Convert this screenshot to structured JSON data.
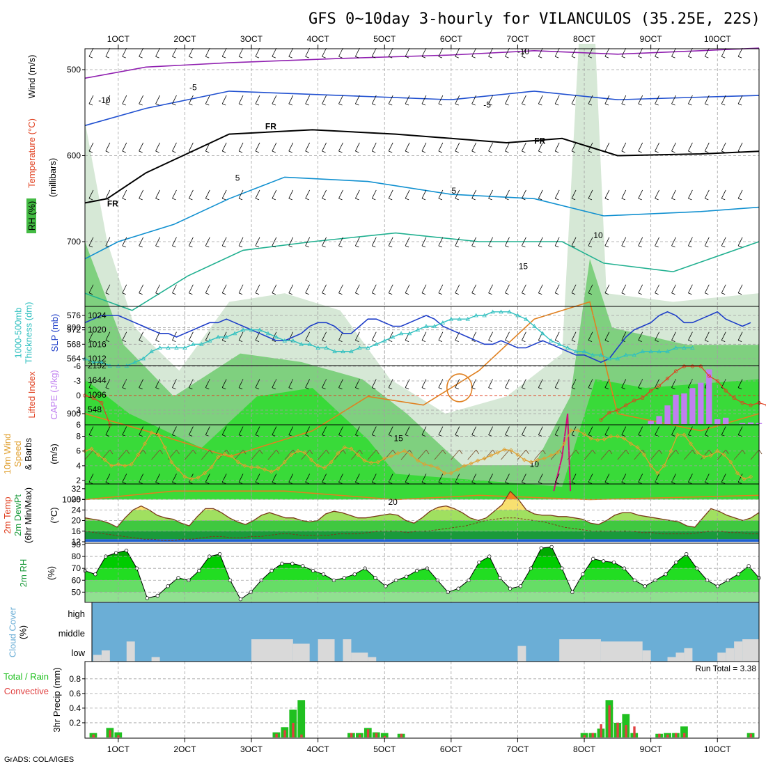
{
  "title": "GFS 0~10day 3-hourly for VILANCULOS (35.25E, 22S)",
  "footer": "GrADS: COLA/IGES",
  "x_axis": {
    "ticks": [
      "1OCT",
      "2OCT",
      "3OCT",
      "4OCT",
      "5OCT",
      "6OCT",
      "7OCT",
      "8OCT",
      "9OCT",
      "10OCT"
    ],
    "tick_hours": [
      0,
      24,
      48,
      72,
      96,
      120,
      144,
      168,
      192,
      216
    ],
    "range_hours": [
      -12,
      231
    ]
  },
  "colors": {
    "green_bright": "#00ee00",
    "green_mid": "#44cc44",
    "green_light": "#90e090",
    "sky": "#6baed6",
    "cloud_gray": "#d9d9d9",
    "temp_red": "#e04020",
    "cape_purple": "#c080f0",
    "speed_orange": "#e0a030",
    "slp_blue": "#1c3cc8",
    "thick_cyan": "#30c0c0"
  },
  "chart_data": [
    {
      "type": "heatmap",
      "panel": "cross-section",
      "ylabel": "(millibars)",
      "side_labels": {
        "rh": "RH (%)",
        "temp": "Temperature (°C)",
        "wind": "Wind (m/s)"
      },
      "y_ticks": [
        500,
        600,
        700,
        800,
        900,
        1000
      ],
      "ylim": [
        1000,
        450
      ],
      "isotherm_labels": [
        {
          "text": "-10",
          "x_hour": -5,
          "p": 535
        },
        {
          "text": "-10",
          "x_hour": 146,
          "p": 478
        },
        {
          "text": "-5",
          "x_hour": 27,
          "p": 520
        },
        {
          "text": "-5",
          "x_hour": 133,
          "p": 540
        },
        {
          "text": "FR",
          "x_hour": 55,
          "p": 565
        },
        {
          "text": "FR",
          "x_hour": -2,
          "p": 655
        },
        {
          "text": "FR",
          "x_hour": 152,
          "p": 582
        },
        {
          "text": "5",
          "x_hour": 43,
          "p": 625
        },
        {
          "text": "5",
          "x_hour": 121,
          "p": 640
        },
        {
          "text": "10",
          "x_hour": 173,
          "p": 692
        },
        {
          "text": "15",
          "x_hour": 146,
          "p": 728
        },
        {
          "text": "15",
          "x_hour": 101,
          "p": 928
        },
        {
          "text": "20",
          "x_hour": 99,
          "p": 1002
        },
        {
          "text": "10",
          "x_hour": 150,
          "p": 958
        }
      ]
    },
    {
      "type": "line",
      "panel": "SLP / thickness",
      "ylabel_left": "1000-500mb Thickness (dm)",
      "ylabel_right": "SLP (mb)",
      "y_ticks_left": [
        564,
        568,
        572,
        576
      ],
      "y_ticks_right": [
        1012,
        1016,
        1020,
        1024
      ],
      "series": [
        {
          "name": "SLP (mb)",
          "axis": "right",
          "values": [
            1022,
            1023,
            1024,
            1024,
            1024,
            1023,
            1022,
            1021,
            1020,
            1019,
            1019,
            1018,
            1019,
            1020,
            1021,
            1022,
            1022,
            1023,
            1022,
            1021,
            1020,
            1019,
            1018,
            1017,
            1017,
            1018,
            1019,
            1021,
            1022,
            1022,
            1021,
            1019,
            1019,
            1021,
            1023,
            1023,
            1022,
            1021,
            1021,
            1022,
            1023,
            1024,
            1023,
            1021,
            1020,
            1019,
            1018,
            1017,
            1016,
            1016,
            1017,
            1016,
            1015,
            1015,
            1016,
            1017,
            1016,
            1015,
            1014,
            1013,
            1013,
            1012,
            1011,
            1012,
            1015,
            1018,
            1020,
            1021,
            1022,
            1024,
            1025,
            1024,
            1022,
            1022,
            1023,
            1024,
            1025,
            1023,
            1022,
            1021,
            1022
          ]
        },
        {
          "name": "1000-500mb Thickness (dm)",
          "axis": "left",
          "values": [
            564,
            563,
            563,
            562,
            562,
            562,
            563,
            564,
            566,
            567,
            567,
            567,
            567,
            568,
            568,
            569,
            570,
            570,
            571,
            572,
            572,
            572,
            571,
            570,
            569,
            569,
            568,
            568,
            567,
            567,
            566,
            566,
            566,
            567,
            567,
            568,
            569,
            570,
            571,
            571,
            572,
            573,
            573,
            574,
            575,
            575,
            575,
            576,
            576,
            577,
            577,
            577,
            576,
            575,
            573,
            571,
            569,
            568,
            567,
            566,
            566,
            565,
            565,
            564,
            564,
            565,
            565,
            566,
            566,
            566,
            566,
            567,
            567,
            567
          ]
        }
      ]
    },
    {
      "type": "bar",
      "panel": "CAPE / Lifted Index",
      "ylabel_left": "Lifted Index",
      "ylabel_right": "CAPE (J/kg)",
      "y_ticks_left": [
        "-6",
        "-3",
        "0",
        "3",
        "6"
      ],
      "y_ticks_right": [
        548,
        1096,
        1644,
        2192
      ],
      "cape_values": [
        0,
        0,
        0,
        0,
        0,
        0,
        0,
        0,
        0,
        0,
        0,
        0,
        0,
        0,
        0,
        0,
        0,
        0,
        0,
        0,
        0,
        0,
        0,
        0,
        0,
        0,
        0,
        0,
        0,
        0,
        0,
        0,
        0,
        0,
        0,
        0,
        0,
        0,
        0,
        0,
        0,
        0,
        0,
        0,
        0,
        0,
        0,
        0,
        0,
        0,
        0,
        0,
        0,
        0,
        0,
        0,
        0,
        0,
        0,
        0,
        0,
        0,
        0,
        0,
        0,
        0,
        0,
        0,
        120,
        300,
        700,
        1100,
        1150,
        1350,
        1550,
        2050,
        180,
        240,
        0,
        40,
        60,
        40,
        0,
        0,
        0,
        0,
        0,
        0,
        0,
        0,
        0,
        0,
        0,
        0,
        0,
        0,
        0,
        0,
        0,
        0,
        0,
        0,
        0,
        0,
        0
      ],
      "lifted_index": [
        0,
        0.5,
        1.5,
        6,
        null,
        null,
        null,
        null,
        null,
        null,
        null,
        null,
        null,
        null,
        null,
        null,
        null,
        null,
        null,
        null,
        null,
        null,
        null,
        null,
        null,
        null,
        null,
        null,
        null,
        null,
        null,
        null,
        null,
        null,
        null,
        null,
        null,
        null,
        null,
        null,
        null,
        null,
        null,
        null,
        null,
        null,
        null,
        null,
        null,
        null,
        null,
        null,
        null,
        null,
        null,
        null,
        null,
        null,
        null,
        null,
        null,
        null,
        5,
        3.5,
        3,
        2,
        1,
        0.5,
        -1,
        -2,
        -3.5,
        -5,
        -6,
        -6,
        -6,
        -4,
        -3,
        -1,
        0.5,
        1.5,
        2,
        1.5,
        2,
        3,
        4.5,
        6,
        null,
        null,
        null,
        null,
        null,
        4,
        5,
        5,
        5,
        5,
        5,
        5,
        5,
        5,
        5,
        5,
        5
      ]
    },
    {
      "type": "line",
      "panel": "10m Wind",
      "ylabel": "10m Wind Speed & Barbs (m/s)",
      "y_ticks": [
        2,
        4,
        6,
        8
      ],
      "series": [
        {
          "name": "Speed",
          "values": [
            6,
            6.3,
            5.5,
            4.8,
            4,
            4.2,
            4,
            4.2,
            5.5,
            7,
            8.5,
            8.2,
            6.5,
            4.5,
            3.5,
            2.5,
            2.2,
            2.4,
            3,
            3.8,
            5.2,
            5.6,
            5.3,
            4.5,
            4,
            3.8,
            3.8,
            3.5,
            3.2,
            3.6,
            4.5,
            5.5,
            6,
            5.8,
            4.8,
            4,
            3.7,
            4.5,
            5.7,
            6.5,
            6.3,
            5.5,
            4.7,
            4.4,
            4.5,
            5,
            5.3,
            5.7,
            6,
            5.5,
            4.7,
            4.2,
            4,
            3.7,
            3,
            3,
            3.5,
            4,
            4.3,
            4.7,
            5,
            5.4,
            5.8,
            6.2,
            6.1,
            5.5,
            4.8,
            4.5,
            4.8,
            5,
            5.4,
            5.8,
            7,
            8.8,
            8.8,
            8.3,
            7.7,
            7.5,
            7.6,
            8,
            8,
            7.7,
            7,
            6.5,
            5.5,
            4,
            3,
            4,
            6,
            8.2,
            8.2,
            7,
            5.8,
            5.2,
            5.4,
            6,
            5.5,
            4.5,
            3,
            2.2,
            2.5
          ]
        }
      ]
    },
    {
      "type": "area",
      "panel": "2m Temp",
      "ylabel": "2m Temp 2m DewPt (6hr Min/Max) (°C)",
      "y_ticks": [
        12,
        16,
        20,
        24,
        28,
        32
      ],
      "series": [
        {
          "name": "2m Temp",
          "values": [
            21,
            20.5,
            20,
            19,
            17.5,
            21,
            24,
            25.5,
            24,
            22,
            21,
            20.5,
            19,
            18,
            21.5,
            24.5,
            24.5,
            23,
            21,
            19.5,
            18.5,
            20,
            22,
            23,
            22,
            21,
            21,
            20,
            19.5,
            20,
            22.5,
            23.5,
            23,
            22,
            21,
            21,
            21.5,
            22,
            22.5,
            22,
            20,
            19,
            21,
            23.5,
            25,
            25.5,
            24.5,
            23,
            21,
            20,
            21,
            23.5,
            26,
            31,
            28,
            24,
            22.5,
            22,
            22,
            21.5,
            21.5,
            21,
            20.5,
            19,
            18.5,
            20,
            22,
            23,
            23,
            22,
            21.5,
            21,
            20.5,
            20,
            19.5,
            18,
            17.5,
            21,
            24.5,
            23.5,
            22,
            21,
            20,
            21,
            23
          ]
        },
        {
          "name": "2m DewPt",
          "values": [
            16,
            15.5,
            15,
            14.5,
            14,
            13.5,
            13,
            13,
            12.5,
            12.5,
            13,
            13,
            13.5,
            14,
            14,
            13.5,
            13.5,
            14,
            14,
            14.5,
            15,
            15,
            14.5,
            14.5,
            14.5,
            14.5,
            15,
            15,
            15,
            15.5,
            16,
            16,
            16,
            15.5,
            16,
            16,
            16.5,
            17,
            17.5,
            18,
            19,
            20,
            20.5,
            21,
            21,
            20.5,
            20,
            19.5,
            18.5,
            17.5,
            17,
            16.5,
            16,
            16,
            16,
            16,
            16,
            15.5,
            15.5,
            15,
            15,
            15,
            15,
            15.5,
            16,
            16,
            15.5,
            15.5,
            15,
            15
          ]
        }
      ]
    },
    {
      "type": "area",
      "panel": "2m RH",
      "ylabel": "2m RH (%)",
      "y_ticks": [
        50,
        60,
        70,
        80,
        90
      ],
      "series": [
        {
          "name": "2m RH",
          "values": [
            68,
            65,
            80,
            83,
            85,
            70,
            45,
            47,
            55,
            62,
            60,
            68,
            80,
            82,
            60,
            44,
            50,
            60,
            68,
            74,
            74,
            72,
            68,
            65,
            60,
            62,
            65,
            70,
            62,
            55,
            60,
            63,
            68,
            70,
            60,
            50,
            53,
            60,
            75,
            80,
            62,
            53,
            55,
            70,
            87,
            88,
            70,
            50,
            65,
            78,
            76,
            75,
            70,
            60,
            55,
            60,
            65,
            75,
            82,
            70,
            60,
            55,
            60,
            65,
            72,
            62
          ]
        }
      ]
    },
    {
      "type": "area",
      "panel": "Cloud Cover",
      "ylabel": "Cloud Cover (%)",
      "levels": [
        "high",
        "middle",
        "low"
      ],
      "low_cloud_blocks": [
        {
          "start_hour": -12,
          "end_hour": -10,
          "value": 1.0
        },
        {
          "start_hour": -9,
          "end_hour": -6,
          "value": 0.3
        },
        {
          "start_hour": -6,
          "end_hour": -3,
          "value": 0.5
        },
        {
          "start_hour": 3,
          "end_hour": 6,
          "value": 0.9
        },
        {
          "start_hour": 12,
          "end_hour": 15,
          "value": 0.2
        },
        {
          "start_hour": 48,
          "end_hour": 63,
          "value": 1.0
        },
        {
          "start_hour": 63,
          "end_hour": 69,
          "value": 0.8
        },
        {
          "start_hour": 72,
          "end_hour": 78,
          "value": 1.0
        },
        {
          "start_hour": 81,
          "end_hour": 84,
          "value": 1.0
        },
        {
          "start_hour": 84,
          "end_hour": 90,
          "value": 0.4
        },
        {
          "start_hour": 90,
          "end_hour": 93,
          "value": 0.2
        },
        {
          "start_hour": 144,
          "end_hour": 147,
          "value": 0.7
        },
        {
          "start_hour": 159,
          "end_hour": 174,
          "value": 1.0
        },
        {
          "start_hour": 174,
          "end_hour": 189,
          "value": 0.9
        },
        {
          "start_hour": 189,
          "end_hour": 192,
          "value": 0.5
        },
        {
          "start_hour": 198,
          "end_hour": 201,
          "value": 0.2
        },
        {
          "start_hour": 201,
          "end_hour": 204,
          "value": 0.4
        },
        {
          "start_hour": 204,
          "end_hour": 207,
          "value": 0.6
        },
        {
          "start_hour": 216,
          "end_hour": 219,
          "value": 0.4
        },
        {
          "start_hour": 219,
          "end_hour": 222,
          "value": 0.6
        },
        {
          "start_hour": 222,
          "end_hour": 225,
          "value": 0.9
        },
        {
          "start_hour": 225,
          "end_hour": 231,
          "value": 1.0
        }
      ]
    },
    {
      "type": "bar",
      "panel": "3hr Precip",
      "ylabel": "3hr Precip (mm)",
      "side_labels": {
        "total": "Total / Rain",
        "convective": "Convective"
      },
      "y_ticks": [
        0.2,
        0.4,
        0.6,
        0.8
      ],
      "run_total_label": "Run Total = 3.38",
      "bars": [
        {
          "hour": -9,
          "total": 0.06,
          "conv": 0.04
        },
        {
          "hour": -3,
          "total": 0.13,
          "conv": 0.1
        },
        {
          "hour": 0,
          "total": 0.07,
          "conv": 0.03
        },
        {
          "hour": 57,
          "total": 0.07,
          "conv": 0.05
        },
        {
          "hour": 60,
          "total": 0.14,
          "conv": 0.1
        },
        {
          "hour": 63,
          "total": 0.38,
          "conv": 0.2
        },
        {
          "hour": 66,
          "total": 0.51,
          "conv": 0.04
        },
        {
          "hour": 84,
          "total": 0.06,
          "conv": 0.06
        },
        {
          "hour": 87,
          "total": 0.06,
          "conv": 0.04
        },
        {
          "hour": 90,
          "total": 0.13,
          "conv": 0.11
        },
        {
          "hour": 93,
          "total": 0.07,
          "conv": 0.06
        },
        {
          "hour": 96,
          "total": 0.06,
          "conv": 0.02
        },
        {
          "hour": 102,
          "total": 0.05,
          "conv": 0.05
        },
        {
          "hour": 168,
          "total": 0.06,
          "conv": 0.03
        },
        {
          "hour": 171,
          "total": 0.06,
          "conv": 0.06
        },
        {
          "hour": 174,
          "total": 0.12,
          "conv": 0.18
        },
        {
          "hour": 177,
          "total": 0.51,
          "conv": 0.44
        },
        {
          "hour": 180,
          "total": 0.2,
          "conv": 0.2
        },
        {
          "hour": 183,
          "total": 0.32,
          "conv": 0.17
        },
        {
          "hour": 186,
          "total": 0.06,
          "conv": 0.15
        },
        {
          "hour": 195,
          "total": 0.05,
          "conv": 0.05
        },
        {
          "hour": 198,
          "total": 0.06,
          "conv": 0.04
        },
        {
          "hour": 201,
          "total": 0.06,
          "conv": 0.06
        },
        {
          "hour": 204,
          "total": 0.15,
          "conv": 0.06
        },
        {
          "hour": 228,
          "total": 0.06,
          "conv": 0.05
        }
      ]
    }
  ]
}
